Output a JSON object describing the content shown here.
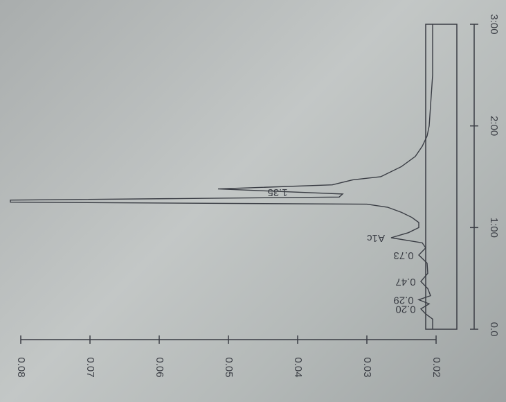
{
  "chart_data": {
    "type": "line",
    "x": [
      0.0,
      0.1,
      0.15,
      0.2,
      0.25,
      0.29,
      0.33,
      0.4,
      0.47,
      0.55,
      0.65,
      0.73,
      0.8,
      0.85,
      0.9,
      0.95,
      1.0,
      1.05,
      1.1,
      1.15,
      1.2,
      1.23,
      1.25,
      1.27,
      1.3,
      1.33,
      1.38,
      1.42,
      1.47,
      1.5,
      1.6,
      1.7,
      1.8,
      1.9,
      2.0,
      2.5,
      3.0
    ],
    "series": [
      {
        "color": "#3a3d44",
        "values": [
          0.0205,
          0.0205,
          0.0215,
          0.0222,
          0.021,
          0.0225,
          0.0208,
          0.0212,
          0.0222,
          0.0212,
          0.0213,
          0.0225,
          0.0215,
          0.022,
          0.0265,
          0.024,
          0.0225,
          0.0225,
          0.0235,
          0.025,
          0.027,
          0.03,
          0.0815,
          0.0815,
          0.034,
          0.0335,
          0.0515,
          0.035,
          0.032,
          0.028,
          0.025,
          0.023,
          0.022,
          0.0213,
          0.021,
          0.0205,
          0.0205
        ]
      }
    ],
    "peaks": [
      {
        "label": "0.20",
        "x": 0.2
      },
      {
        "label": "0.29",
        "x": 0.29
      },
      {
        "label": "0.47",
        "x": 0.47
      },
      {
        "label": "0.73",
        "x": 0.73
      },
      {
        "label": "A1c",
        "x": 0.9
      },
      {
        "label": "1.35",
        "x": 1.35
      }
    ],
    "xlim": [
      0,
      3
    ],
    "xticks": [
      {
        "value": 0,
        "label": "0.0"
      },
      {
        "value": 1,
        "label": "1:00"
      },
      {
        "value": 2,
        "label": "2:00"
      },
      {
        "value": 3,
        "label": "3:00"
      }
    ],
    "ylim": [
      0.02,
      0.08
    ],
    "yticks": [
      0.02,
      0.03,
      0.04,
      0.05,
      0.06,
      0.07,
      0.08
    ]
  }
}
